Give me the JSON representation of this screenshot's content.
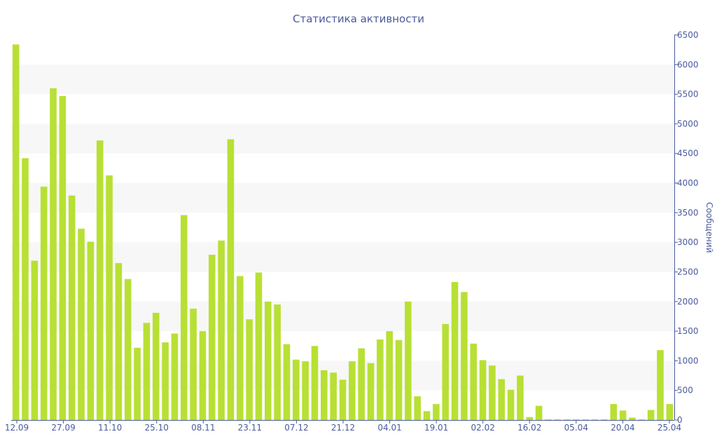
{
  "chart_data": {
    "type": "bar",
    "title": "Статистика активности",
    "ylabel": "Сообщений",
    "ylim": [
      0,
      6500
    ],
    "yticks": [
      0,
      500,
      1000,
      1500,
      2000,
      2500,
      3000,
      3500,
      4000,
      4500,
      5000,
      5500,
      6000,
      6500
    ],
    "xtick_labels": [
      "12.09",
      "27.09",
      "11.10",
      "25.10",
      "08.11",
      "23.11",
      "07.12",
      "21.12",
      "04.01",
      "19.01",
      "02.02",
      "16.02",
      "05.04",
      "20.04",
      "25.04"
    ],
    "y_axis_position": "right",
    "grid": "alternating horizontal bands",
    "colors": {
      "bar": "#b8e034",
      "text": "#4a5a9c",
      "axis": "#4a5a9c",
      "band": "#f7f7f7"
    },
    "values": [
      6340,
      4420,
      2690,
      3940,
      5600,
      5470,
      3790,
      3230,
      3010,
      4720,
      4130,
      2650,
      2380,
      1220,
      1640,
      1810,
      1310,
      1460,
      3460,
      1880,
      1500,
      2790,
      3030,
      4740,
      2430,
      1700,
      2490,
      2000,
      1950,
      1280,
      1020,
      990,
      1250,
      840,
      800,
      680,
      990,
      1210,
      960,
      1360,
      1500,
      1350,
      2000,
      400,
      150,
      270,
      1620,
      2330,
      2160,
      1290,
      1010,
      920,
      690,
      510,
      750,
      50,
      240,
      10,
      10,
      10,
      10,
      10,
      10,
      10,
      270,
      160,
      40,
      10,
      170,
      1180,
      270
    ]
  }
}
